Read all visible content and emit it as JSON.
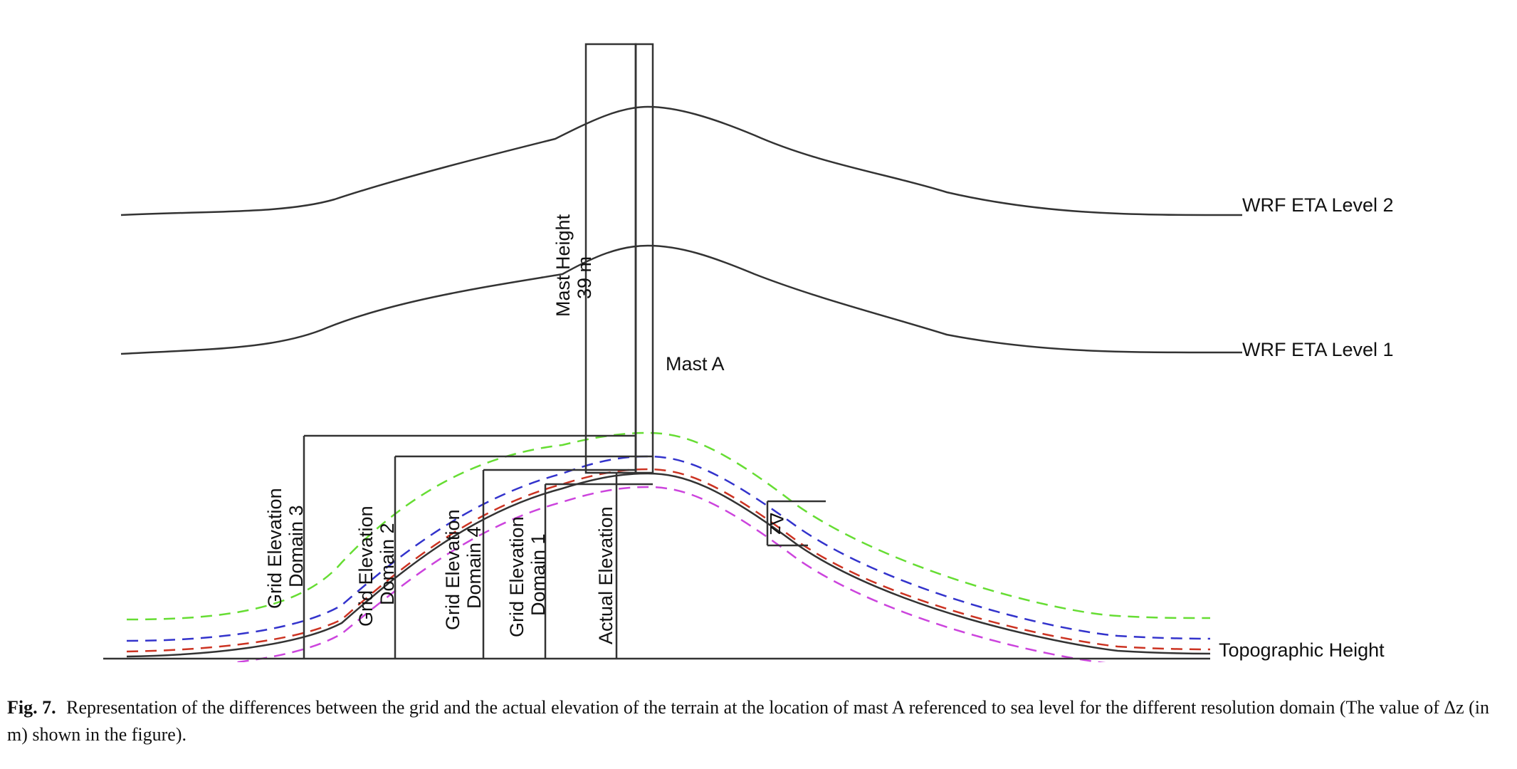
{
  "labels": {
    "eta_level_2": "WRF ETA Level 2",
    "eta_level_1": "WRF ETA Level 1",
    "mast_a": "Mast A",
    "mast_height_line1": "Mast Height",
    "mast_height_line2": "39 m",
    "topographic_height": "Topographic Height",
    "grid_d3_line1": "Grid Elevation",
    "grid_d3_line2": "Domain 3",
    "grid_d2_line1": "Grid  Elevation",
    "grid_d2_line2": "Domain 2",
    "grid_d4_line1": "Grid Elevation",
    "grid_d4_line2": "Domain 4",
    "grid_d1_line1": "Grid Elevation",
    "grid_d1_line2": "Domain 1",
    "actual_elevation": "Actual Elevation",
    "delta_z": "Δz"
  },
  "colors": {
    "line": "#333333",
    "domain3": "#66dd33",
    "domain2": "#3333cc",
    "domain1": "#cc3322",
    "domain4": "#cc44dd"
  },
  "caption": {
    "fig_label": "Fig. 7.",
    "text": "Representation of the differences between the grid and the actual elevation of the terrain at the location of mast A referenced to sea level for the different resolution domain (The value of Δz (in m) shown in the figure)."
  }
}
